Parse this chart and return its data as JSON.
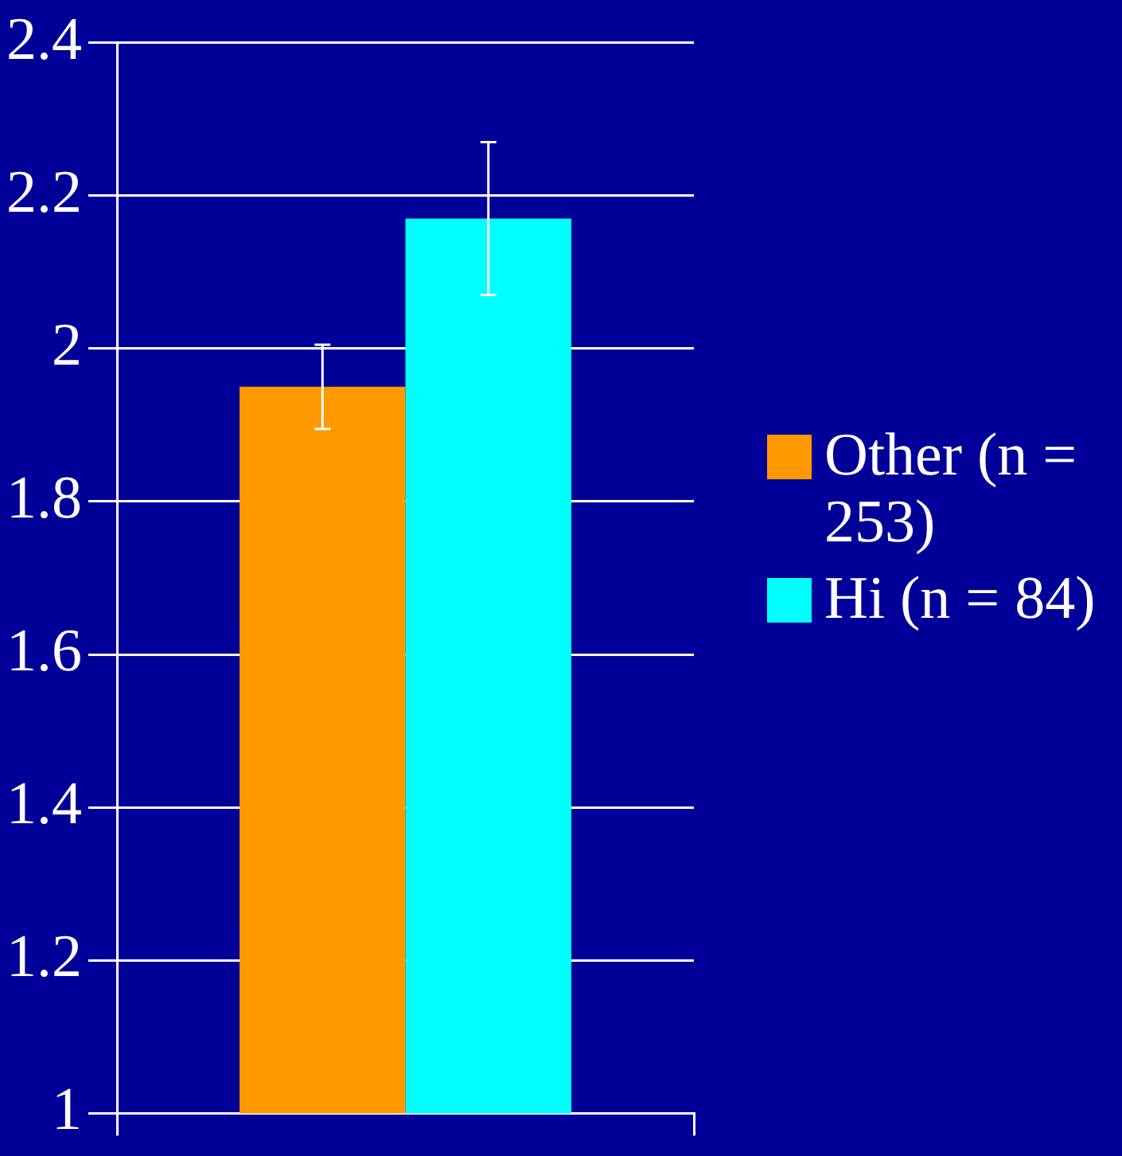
{
  "chart_data": {
    "type": "bar",
    "categories": [
      null
    ],
    "series": [
      {
        "name": "Other (n = 253)",
        "color": "#ff9900",
        "values": [
          1.95
        ],
        "errors": [
          0.055
        ]
      },
      {
        "name": "Hi (n = 84)",
        "color": "#00ffff",
        "values": [
          2.17
        ],
        "errors": [
          0.1
        ]
      }
    ],
    "ylim": [
      1,
      2.4
    ],
    "yticks": [
      1,
      1.2,
      1.4,
      1.6,
      1.8,
      2,
      2.2,
      2.4
    ],
    "grid": "y",
    "legend": "right",
    "tick_labels": "y"
  }
}
